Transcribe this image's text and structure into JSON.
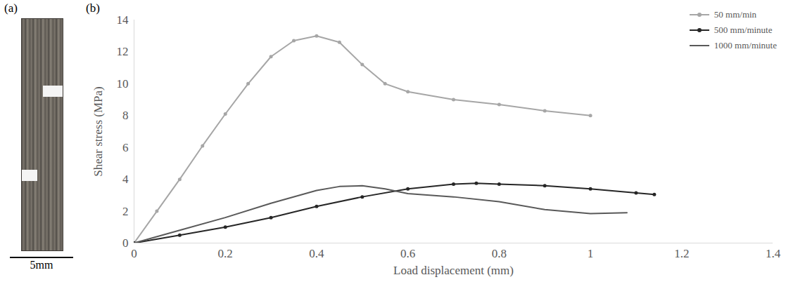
{
  "panel_a": {
    "label": "(a)",
    "scale_bar_label": "5mm"
  },
  "chart_data": {
    "type": "line",
    "panel_label": "(b)",
    "x_label": "Load displacement (mm)",
    "y_label": "Shear stress (MPa)",
    "xlim": [
      0,
      1.4
    ],
    "xticks": [
      0,
      0.2,
      0.4,
      0.6,
      0.8,
      1,
      1.2,
      1.4
    ],
    "ylim": [
      0,
      14
    ],
    "yticks": [
      0,
      2,
      4,
      6,
      8,
      10,
      12,
      14
    ],
    "grid": false,
    "legend": "top-right",
    "series": [
      {
        "name": "50 mm/min",
        "color": "#a6a6a6",
        "marker": "circle",
        "line_style": "solid",
        "x": [
          0,
          0.05,
          0.1,
          0.15,
          0.2,
          0.25,
          0.3,
          0.35,
          0.4,
          0.45,
          0.5,
          0.55,
          0.6,
          0.7,
          0.8,
          0.9,
          1.0
        ],
        "values": [
          0,
          2.0,
          4.0,
          6.1,
          8.1,
          10.0,
          11.7,
          12.7,
          13.0,
          12.6,
          11.2,
          10.0,
          9.5,
          9.0,
          8.7,
          8.3,
          8.0
        ]
      },
      {
        "name": "500 mm/minute",
        "color": "#262626",
        "marker": "circle",
        "line_style": "solid",
        "x": [
          0,
          0.1,
          0.2,
          0.3,
          0.4,
          0.5,
          0.6,
          0.7,
          0.75,
          0.8,
          0.9,
          1.0,
          1.1,
          1.14
        ],
        "values": [
          0,
          0.5,
          1.0,
          1.6,
          2.3,
          2.9,
          3.4,
          3.7,
          3.75,
          3.7,
          3.6,
          3.4,
          3.15,
          3.05
        ]
      },
      {
        "name": "1000 mm/minute",
        "color": "#595959",
        "marker": "none",
        "line_style": "solid",
        "x": [
          0,
          0.1,
          0.2,
          0.3,
          0.4,
          0.45,
          0.5,
          0.55,
          0.6,
          0.7,
          0.8,
          0.9,
          1.0,
          1.08
        ],
        "values": [
          0,
          0.8,
          1.6,
          2.5,
          3.3,
          3.55,
          3.6,
          3.4,
          3.1,
          2.9,
          2.6,
          2.1,
          1.85,
          1.9
        ]
      }
    ]
  }
}
